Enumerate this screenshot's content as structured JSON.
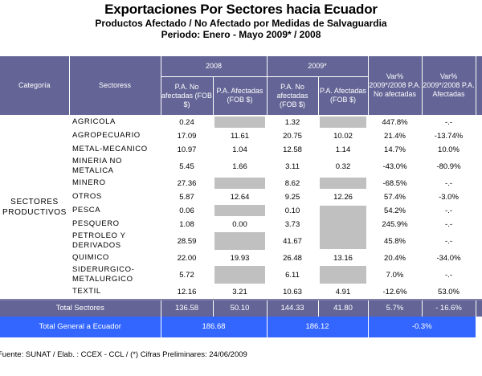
{
  "header": {
    "title": "Exportaciones Por Sectores hacia Ecuador",
    "subtitle": "Productos Afectado / No Afectado por Medidas de Salvaguardia",
    "period": "Periodo: Enero - Mayo 2009* / 2008"
  },
  "table": {
    "columns": {
      "categoria": "Categoría",
      "sectores": "Sectoress",
      "year_2008": "2008",
      "year_2009": "2009*",
      "pa_no_afectadas": "P.A. No afectadas (FOB $)",
      "pa_afectadas": "P.A. Afectadas (FOB $)",
      "var_no_afectadas": "Var% 2009*/2008 P.A. No afectadas",
      "var_afectadas": "Var% 2009*/2008 P.A. Afectadas"
    },
    "category": "SECTORES PRODUCTIVOS",
    "rows": [
      {
        "sector": "AGRICOLA",
        "no_2008": "0.24",
        "af_2008": null,
        "no_2009": "1.32",
        "af_2009": null,
        "var_no": "447.8%",
        "var_af": "-.-"
      },
      {
        "sector": "AGROPECUARIO",
        "no_2008": "17.09",
        "af_2008": "11.61",
        "no_2009": "20.75",
        "af_2009": "10.02",
        "var_no": "21.4%",
        "var_af": "-13.74%"
      },
      {
        "sector": "METAL-MECANICO",
        "no_2008": "10.97",
        "af_2008": "1.04",
        "no_2009": "12.58",
        "af_2009": "1.14",
        "var_no": "14.7%",
        "var_af": "10.0%"
      },
      {
        "sector": "MINERIA NO METALICA",
        "no_2008": "5.45",
        "af_2008": "1.66",
        "no_2009": "3.11",
        "af_2009": "0.32",
        "var_no": "-43.0%",
        "var_af": "-80.9%"
      },
      {
        "sector": "MINERO",
        "no_2008": "27.36",
        "af_2008": null,
        "no_2009": "8.62",
        "af_2009": null,
        "var_no": "-68.5%",
        "var_af": "-.-"
      },
      {
        "sector": "OTROS",
        "no_2008": "5.87",
        "af_2008": "12.64",
        "no_2009": "9.25",
        "af_2009": "12.26",
        "var_no": "57.4%",
        "var_af": "-3.0%"
      },
      {
        "sector": "PESCA",
        "no_2008": "0.06",
        "af_2008": null,
        "no_2009": "0.10",
        "af_2009": null,
        "var_no": "54.2%",
        "var_af": "-.-"
      },
      {
        "sector": "PESQUERO",
        "no_2008": "1.08",
        "af_2008": "0.00",
        "no_2009": "3.73",
        "af_2009": null,
        "var_no": "245.9%",
        "var_af": "-.-"
      },
      {
        "sector": "PETROLEO Y DERIVADOS",
        "no_2008": "28.59",
        "af_2008": null,
        "no_2009": "41.67",
        "af_2009": null,
        "var_no": "45.8%",
        "var_af": "-.-"
      },
      {
        "sector": "QUIMICO",
        "no_2008": "22.00",
        "af_2008": "19.93",
        "no_2009": "26.48",
        "af_2009": "13.16",
        "var_no": "20.4%",
        "var_af": "-34.0%"
      },
      {
        "sector": "SIDERURGICO-METALURGICO",
        "no_2008": "5.72",
        "af_2008": null,
        "no_2009": "6.11",
        "af_2009": null,
        "var_no": "7.0%",
        "var_af": "-.-"
      },
      {
        "sector": "TEXTIL",
        "no_2008": "12.16",
        "af_2008": "3.21",
        "no_2009": "10.63",
        "af_2009": "4.91",
        "var_no": "-12.6%",
        "var_af": "53.0%"
      }
    ],
    "total_sectores": {
      "label": "Total Sectores",
      "no_2008": "136.58",
      "af_2008": "50.10",
      "no_2009": "144.33",
      "af_2009": "41.80",
      "var_no": "5.7%",
      "var_af": "- 16.6%"
    },
    "total_general": {
      "label": "Total General a Ecuador",
      "total_2008": "186.68",
      "total_2009": "186.12",
      "var": "-0.3%"
    }
  },
  "footer": {
    "source": "Fuente: SUNAT / Elab. : CCEX - CCL / (*) Cifras Preliminares: 24/06/2009"
  },
  "colors": {
    "header_bg": "#646496",
    "total_general_bg": "#3366ff",
    "gray_cell": "#c0c0c0"
  }
}
